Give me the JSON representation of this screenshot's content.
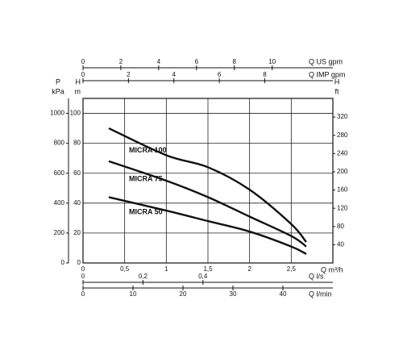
{
  "chart_data": {
    "type": "line",
    "x_label": "Q m³/h",
    "xlim": [
      0,
      3
    ],
    "xticks": [
      0,
      {
        "value": 0.5,
        "label": "0,5"
      },
      1,
      {
        "value": 1.5,
        "label": "1,5"
      },
      2,
      {
        "value": 2.5,
        "label": "2,5"
      }
    ],
    "y_label": "H",
    "y_unit": "m",
    "ylim": [
      0,
      110
    ],
    "yticks": [
      0,
      20,
      40,
      60,
      80,
      100
    ],
    "grid": true,
    "x": [
      0.31,
      1,
      1.5,
      2,
      2.5,
      2.68
    ],
    "series": [
      {
        "name": "MICRA 100",
        "color": "#111111",
        "values": [
          90,
          72,
          64,
          49,
          26,
          14
        ]
      },
      {
        "name": "MICRA 75",
        "color": "#111111",
        "values": [
          68,
          55,
          44,
          31,
          18,
          11
        ]
      },
      {
        "name": "MICRA 50",
        "color": "#111111",
        "values": [
          44,
          35,
          28,
          21,
          11,
          6
        ]
      }
    ],
    "extra_axes": [
      {
        "label": "P",
        "unit": "kPa",
        "side": "left",
        "lim": [
          0,
          1100
        ],
        "ticks": [
          0,
          200,
          400,
          600,
          800,
          1000
        ]
      },
      {
        "label": "H",
        "unit": "ft",
        "side": "right",
        "lim": [
          0,
          360.9
        ],
        "ticks": [
          40,
          80,
          120,
          160,
          200,
          240,
          280,
          320
        ]
      },
      {
        "label": "Q US gpm",
        "side": "top",
        "lim": [
          0,
          13.21
        ],
        "ticks": [
          0,
          2,
          4,
          6,
          8,
          10
        ]
      },
      {
        "label": "Q IMP gpm",
        "side": "top",
        "lim": [
          0,
          11.0
        ],
        "ticks": [
          0,
          2,
          4,
          6,
          8
        ]
      },
      {
        "label": "Q l/s",
        "side": "bottom",
        "lim": [
          0,
          0.8333
        ],
        "ticks": [
          0,
          {
            "value": 0.2,
            "label": "0,2"
          },
          {
            "value": 0.4,
            "label": "0,4"
          }
        ]
      },
      {
        "label": "Q l/min",
        "side": "bottom",
        "lim": [
          0,
          50
        ],
        "ticks": [
          0,
          10,
          20,
          30,
          40
        ]
      }
    ]
  }
}
